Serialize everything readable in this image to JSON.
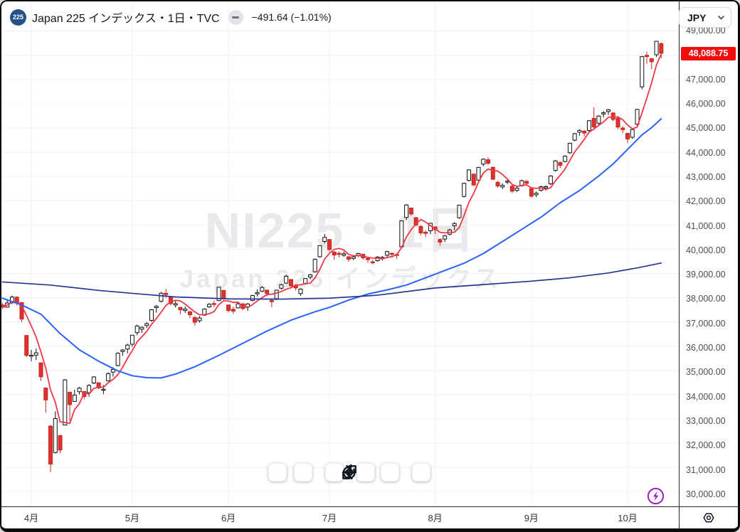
{
  "header": {
    "symbol_badge": "225",
    "title": "Japan 225 インデックス・1日・TVC",
    "change_text": "−491.64 (−1.01%)"
  },
  "currency_button": {
    "label": "JPY"
  },
  "watermark": {
    "line1": "NI225・1日",
    "line2": "Japan 225 インデックス"
  },
  "price_axis": {
    "last_price_label": "48,088.75",
    "badge_color": "#f20c0c",
    "ticks": [
      {
        "value": 49000,
        "label": "49,000.00"
      },
      {
        "value": 48000,
        "label": "48,000.00"
      },
      {
        "value": 47000,
        "label": "47,000.00"
      },
      {
        "value": 46000,
        "label": "46,000.00"
      },
      {
        "value": 45000,
        "label": "45,000.00"
      },
      {
        "value": 44000,
        "label": "44,000.00"
      },
      {
        "value": 43000,
        "label": "43,000.00"
      },
      {
        "value": 42000,
        "label": "42,000.00"
      },
      {
        "value": 41000,
        "label": "41,000.00"
      },
      {
        "value": 40000,
        "label": "40,000.00"
      },
      {
        "value": 39000,
        "label": "39,000.00"
      },
      {
        "value": 38000,
        "label": "38,000.00"
      },
      {
        "value": 37000,
        "label": "37,000.00"
      },
      {
        "value": 36000,
        "label": "36,000.00"
      },
      {
        "value": 35000,
        "label": "35,000.00"
      },
      {
        "value": 34000,
        "label": "34,000.00"
      },
      {
        "value": 33000,
        "label": "33,000.00"
      },
      {
        "value": 32000,
        "label": "32,000.00"
      },
      {
        "value": 31000,
        "label": "31,000.00"
      },
      {
        "value": 30000,
        "label": "30,000.00"
      }
    ]
  },
  "time_axis": {
    "ticks": [
      {
        "index": 6,
        "label": "4月"
      },
      {
        "index": 27,
        "label": "5月"
      },
      {
        "index": 47,
        "label": "6月"
      },
      {
        "index": 68,
        "label": "7月"
      },
      {
        "index": 90,
        "label": "8月"
      },
      {
        "index": 110,
        "label": "9月"
      },
      {
        "index": 130,
        "label": "10月"
      }
    ]
  },
  "toolbar": {
    "buttons": [
      "zoom-out",
      "zoom-in",
      "reset-zoom",
      "scroll-left",
      "scroll-right",
      "reset-chart"
    ]
  },
  "colors": {
    "candle_up_fill": "#ffffff",
    "candle_up_stroke": "#0f0f0f",
    "candle_down": "#e0312e",
    "candle_down_stroke": "#c3251f",
    "ma_fast": "#f23645",
    "ma_mid": "#2962ff",
    "ma_long": "#283593",
    "grid": "#eef1f7",
    "badge": "#f20c0c",
    "boost_purple": "#a31ec8"
  },
  "chart_data": {
    "type": "candlestick",
    "title": "Japan 225 インデックス",
    "symbol": "NI225",
    "interval": "1日",
    "exchange": "TVC",
    "currency": "JPY",
    "last": {
      "price": 48088.75,
      "change": -491.64,
      "change_pct": -1.01
    },
    "y_axis": {
      "min": 30000,
      "max": 49000,
      "step": 1000,
      "side": "right"
    },
    "x_axis": {
      "unit": "day",
      "visible_months": [
        "4月",
        "5月",
        "6月",
        "7月",
        "8月",
        "9月",
        "10月"
      ]
    },
    "grid": true,
    "candles_format": [
      "date(MM-DD)",
      "open",
      "high",
      "low",
      "close"
    ],
    "candles": [
      [
        "03-24",
        37700,
        37780,
        37530,
        37608
      ],
      [
        "03-25",
        37610,
        37900,
        37590,
        37780
      ],
      [
        "03-26",
        37790,
        38090,
        37740,
        38027
      ],
      [
        "03-27",
        38020,
        38060,
        37680,
        37799
      ],
      [
        "03-28",
        37800,
        37810,
        37000,
        37120
      ],
      [
        "03-31",
        36440,
        36450,
        35540,
        35617
      ],
      [
        "04-01",
        35620,
        35850,
        35380,
        35624
      ],
      [
        "04-02",
        35630,
        35900,
        35430,
        35725
      ],
      [
        "04-03",
        35310,
        35330,
        34560,
        34736
      ],
      [
        "04-04",
        34270,
        34290,
        33260,
        33781
      ],
      [
        "04-07",
        32700,
        32750,
        30793,
        31136
      ],
      [
        "04-08",
        31610,
        33310,
        31570,
        33012
      ],
      [
        "04-09",
        32310,
        32340,
        31588,
        31714
      ],
      [
        "04-10",
        32750,
        34640,
        32730,
        34609
      ],
      [
        "04-11",
        34100,
        34110,
        32920,
        33586
      ],
      [
        "04-14",
        33720,
        34210,
        33710,
        33982
      ],
      [
        "04-15",
        34120,
        34320,
        34000,
        34268
      ],
      [
        "04-16",
        34130,
        34140,
        33810,
        33920
      ],
      [
        "04-17",
        34080,
        34440,
        33920,
        34377
      ],
      [
        "04-18",
        34480,
        34760,
        34430,
        34730
      ],
      [
        "04-21",
        34490,
        34500,
        34220,
        34280
      ],
      [
        "04-22",
        34180,
        34390,
        34020,
        34220
      ],
      [
        "04-23",
        34570,
        34920,
        34550,
        34868
      ],
      [
        "04-24",
        34930,
        35130,
        34740,
        35039
      ],
      [
        "04-25",
        35200,
        35750,
        35170,
        35706
      ],
      [
        "04-28",
        35780,
        35880,
        35600,
        35840
      ],
      [
        "04-30",
        35880,
        36100,
        35700,
        36045
      ],
      [
        "05-01",
        36080,
        36460,
        35980,
        36452
      ],
      [
        "05-02",
        36560,
        36890,
        36450,
        36831
      ],
      [
        "05-07",
        36700,
        36810,
        36550,
        36779
      ],
      [
        "05-08",
        36850,
        37000,
        36750,
        36928
      ],
      [
        "05-09",
        37060,
        37530,
        37010,
        37503
      ],
      [
        "05-12",
        37590,
        37700,
        37380,
        37644
      ],
      [
        "05-13",
        37850,
        38240,
        37800,
        38183
      ],
      [
        "05-14",
        38180,
        38360,
        38000,
        38128
      ],
      [
        "05-15",
        38020,
        38050,
        37690,
        37755
      ],
      [
        "05-16",
        37700,
        37860,
        37590,
        37754
      ],
      [
        "05-19",
        37600,
        37620,
        37320,
        37499
      ],
      [
        "05-20",
        37470,
        37640,
        37370,
        37529
      ],
      [
        "05-21",
        37420,
        37450,
        37150,
        37298
      ],
      [
        "05-22",
        37180,
        37240,
        36850,
        36986
      ],
      [
        "05-23",
        37050,
        37240,
        36970,
        37160
      ],
      [
        "05-26",
        37280,
        37560,
        37250,
        37532
      ],
      [
        "05-27",
        37620,
        37780,
        37580,
        37724
      ],
      [
        "05-28",
        37760,
        37870,
        37610,
        37722
      ],
      [
        "05-29",
        37880,
        38440,
        37860,
        38433
      ],
      [
        "05-30",
        38300,
        38320,
        37920,
        37965
      ],
      [
        "06-02",
        37700,
        37710,
        37400,
        37470
      ],
      [
        "06-03",
        37520,
        37630,
        37330,
        37447
      ],
      [
        "06-04",
        37580,
        37780,
        37560,
        37747
      ],
      [
        "06-05",
        37740,
        37790,
        37480,
        37554
      ],
      [
        "06-06",
        37620,
        37780,
        37460,
        37742
      ],
      [
        "06-09",
        37880,
        38120,
        37860,
        38088
      ],
      [
        "06-10",
        38160,
        38340,
        38050,
        38211
      ],
      [
        "06-11",
        38270,
        38490,
        38230,
        38421
      ],
      [
        "06-12",
        38310,
        38330,
        38060,
        38173
      ],
      [
        "06-13",
        37890,
        37940,
        37610,
        37834
      ],
      [
        "06-16",
        37960,
        38320,
        37900,
        38311
      ],
      [
        "06-17",
        38390,
        38580,
        38330,
        38536
      ],
      [
        "06-18",
        38600,
        38940,
        38560,
        38885
      ],
      [
        "06-19",
        38750,
        38770,
        38420,
        38488
      ],
      [
        "06-20",
        38480,
        38560,
        38290,
        38403
      ],
      [
        "06-23",
        38170,
        38390,
        38070,
        38354
      ],
      [
        "06-24",
        38570,
        38810,
        38540,
        38790
      ],
      [
        "06-25",
        38850,
        38980,
        38760,
        38942
      ],
      [
        "06-26",
        39070,
        39620,
        39030,
        39584
      ],
      [
        "06-27",
        39690,
        40160,
        39650,
        40150
      ],
      [
        "06-30",
        40320,
        40630,
        40240,
        40487
      ],
      [
        "07-01",
        40400,
        40420,
        39900,
        39986
      ],
      [
        "07-02",
        39880,
        39920,
        39570,
        39762
      ],
      [
        "07-03",
        39830,
        39900,
        39660,
        39786
      ],
      [
        "07-04",
        39750,
        39900,
        39690,
        39811
      ],
      [
        "07-07",
        39690,
        39710,
        39480,
        39588
      ],
      [
        "07-08",
        39620,
        39750,
        39550,
        39688
      ],
      [
        "07-09",
        39750,
        39850,
        39680,
        39821
      ],
      [
        "07-10",
        39790,
        39810,
        39570,
        39646
      ],
      [
        "07-11",
        39620,
        39680,
        39440,
        39570
      ],
      [
        "07-14",
        39480,
        39560,
        39380,
        39460
      ],
      [
        "07-15",
        39530,
        39710,
        39480,
        39678
      ],
      [
        "07-16",
        39650,
        39720,
        39530,
        39663
      ],
      [
        "07-17",
        39750,
        39940,
        39680,
        39901
      ],
      [
        "07-18",
        39830,
        39870,
        39650,
        39819
      ],
      [
        "07-22",
        39780,
        39830,
        39610,
        39775
      ],
      [
        "07-23",
        40100,
        41190,
        40080,
        41171
      ],
      [
        "07-24",
        41310,
        41860,
        41200,
        41826
      ],
      [
        "07-25",
        41700,
        41710,
        41380,
        41456
      ],
      [
        "07-28",
        41300,
        41330,
        40940,
        40998
      ],
      [
        "07-29",
        40940,
        40990,
        40580,
        40674
      ],
      [
        "07-30",
        40700,
        40780,
        40500,
        40654
      ],
      [
        "07-31",
        40760,
        41090,
        40620,
        41069
      ],
      [
        "08-01",
        40920,
        40940,
        40620,
        40799
      ],
      [
        "08-04",
        40400,
        40450,
        40150,
        40290
      ],
      [
        "08-05",
        40420,
        40590,
        40290,
        40549
      ],
      [
        "08-06",
        40620,
        40840,
        40560,
        40795
      ],
      [
        "08-07",
        40970,
        41120,
        40780,
        41059
      ],
      [
        "08-08",
        41300,
        41830,
        41250,
        41820
      ],
      [
        "08-12",
        42180,
        42750,
        42130,
        42718
      ],
      [
        "08-13",
        42840,
        43300,
        42790,
        43274
      ],
      [
        "08-14",
        43100,
        43110,
        42610,
        42649
      ],
      [
        "08-15",
        42850,
        43390,
        42820,
        43378
      ],
      [
        "08-18",
        43510,
        43750,
        43420,
        43714
      ],
      [
        "08-19",
        43690,
        43790,
        43480,
        43546
      ],
      [
        "08-20",
        43380,
        43410,
        42850,
        42888
      ],
      [
        "08-21",
        42760,
        42820,
        42540,
        42610
      ],
      [
        "08-22",
        42570,
        42720,
        42480,
        42633
      ],
      [
        "08-25",
        42780,
        42880,
        42690,
        42807
      ],
      [
        "08-26",
        42600,
        42650,
        42320,
        42394
      ],
      [
        "08-27",
        42430,
        42590,
        42360,
        42520
      ],
      [
        "08-28",
        42620,
        42870,
        42580,
        42828
      ],
      [
        "08-29",
        42800,
        42850,
        42620,
        42718
      ],
      [
        "09-01",
        42500,
        42540,
        42130,
        42188
      ],
      [
        "09-02",
        42250,
        42380,
        42150,
        42310
      ],
      [
        "09-03",
        42430,
        42620,
        42380,
        42580
      ],
      [
        "09-04",
        42530,
        42640,
        42420,
        42581
      ],
      [
        "09-05",
        42700,
        43060,
        42650,
        43018
      ],
      [
        "09-08",
        43250,
        43680,
        43200,
        43643
      ],
      [
        "09-09",
        43580,
        43620,
        43350,
        43459
      ],
      [
        "09-10",
        43620,
        43880,
        43580,
        43837
      ],
      [
        "09-11",
        43980,
        44390,
        43930,
        44372
      ],
      [
        "09-12",
        44500,
        44800,
        44450,
        44768
      ],
      [
        "09-16",
        44830,
        44950,
        44680,
        44902
      ],
      [
        "09-17",
        44870,
        44920,
        44650,
        44790
      ],
      [
        "09-18",
        44900,
        45330,
        44850,
        45303
      ],
      [
        "09-19",
        45400,
        45850,
        44950,
        45045
      ],
      [
        "09-22",
        45200,
        45530,
        45110,
        45493
      ],
      [
        "09-24",
        45580,
        45700,
        45440,
        45630
      ],
      [
        "09-25",
        45680,
        45790,
        45540,
        45754
      ],
      [
        "09-26",
        45620,
        45660,
        45280,
        45355
      ],
      [
        "09-29",
        45400,
        45490,
        44960,
        45044
      ],
      [
        "09-30",
        45000,
        45080,
        44790,
        44933
      ],
      [
        "10-01",
        44780,
        44800,
        44380,
        44551
      ],
      [
        "10-02",
        44620,
        44980,
        44550,
        44936
      ],
      [
        "10-03",
        45160,
        45790,
        45100,
        45770
      ],
      [
        "10-06",
        46700,
        47980,
        46600,
        47945
      ],
      [
        "10-07",
        48000,
        48150,
        47650,
        47950
      ],
      [
        "10-08",
        47860,
        47870,
        47430,
        47734
      ],
      [
        "10-09",
        48020,
        48600,
        47930,
        48580
      ],
      [
        "10-10",
        48480,
        48540,
        47880,
        48088.75
      ]
    ],
    "overlays": [
      {
        "name": "ma-fast",
        "type": "sma",
        "period": 5,
        "color": "#f23645",
        "width": 1.8
      },
      {
        "name": "ma-mid",
        "type": "anchors",
        "color": "#2962ff",
        "width": 2,
        "points": [
          [
            0,
            37980
          ],
          [
            4,
            37700
          ],
          [
            8,
            37320
          ],
          [
            12,
            36520
          ],
          [
            16,
            35850
          ],
          [
            20,
            35380
          ],
          [
            24,
            34980
          ],
          [
            27,
            34780
          ],
          [
            30,
            34700
          ],
          [
            33,
            34690
          ],
          [
            36,
            34850
          ],
          [
            40,
            35150
          ],
          [
            45,
            35620
          ],
          [
            50,
            36120
          ],
          [
            55,
            36620
          ],
          [
            60,
            37070
          ],
          [
            65,
            37420
          ],
          [
            68,
            37600
          ],
          [
            72,
            37900
          ],
          [
            76,
            38150
          ],
          [
            80,
            38320
          ],
          [
            84,
            38520
          ],
          [
            88,
            38820
          ],
          [
            92,
            39120
          ],
          [
            96,
            39420
          ],
          [
            100,
            39820
          ],
          [
            104,
            40320
          ],
          [
            108,
            40820
          ],
          [
            112,
            41320
          ],
          [
            116,
            41920
          ],
          [
            120,
            42420
          ],
          [
            124,
            43020
          ],
          [
            127,
            43520
          ],
          [
            130,
            44120
          ],
          [
            133,
            44720
          ],
          [
            135,
            45020
          ],
          [
            137,
            45380
          ]
        ]
      },
      {
        "name": "ma-long",
        "type": "anchors",
        "color": "#283593",
        "width": 1.7,
        "points": [
          [
            0,
            38650
          ],
          [
            10,
            38520
          ],
          [
            20,
            38300
          ],
          [
            27,
            38180
          ],
          [
            36,
            38030
          ],
          [
            47,
            37950
          ],
          [
            58,
            37940
          ],
          [
            68,
            37980
          ],
          [
            78,
            38100
          ],
          [
            90,
            38400
          ],
          [
            100,
            38540
          ],
          [
            110,
            38680
          ],
          [
            118,
            38820
          ],
          [
            126,
            39020
          ],
          [
            132,
            39230
          ],
          [
            137,
            39430
          ]
        ]
      }
    ]
  }
}
